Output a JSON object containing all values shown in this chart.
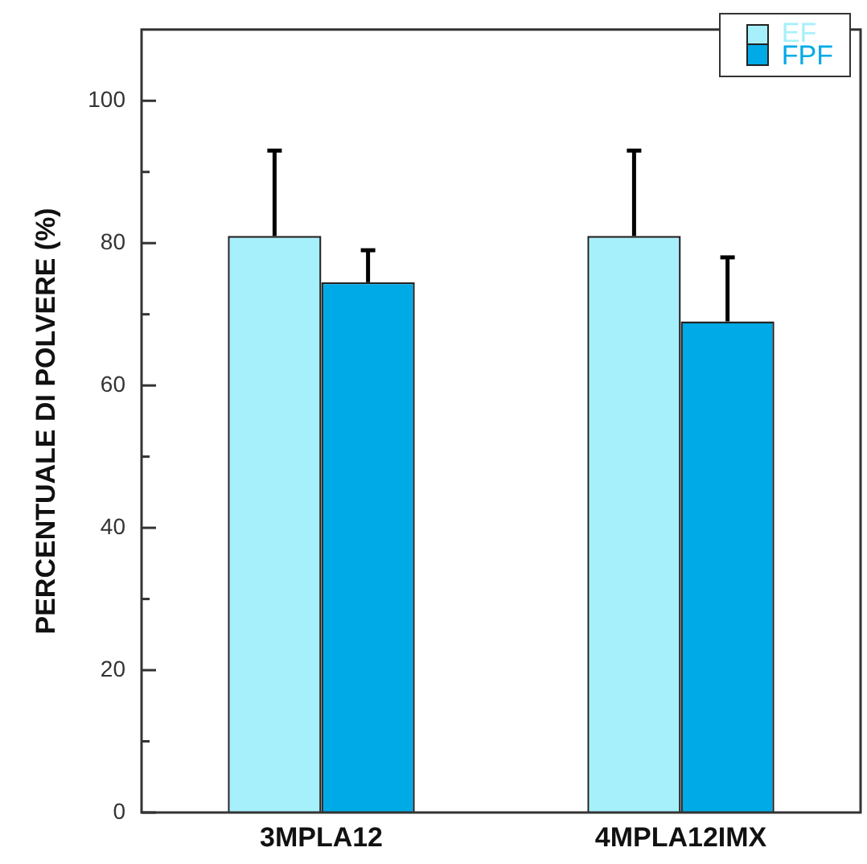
{
  "chart_data": {
    "type": "bar",
    "ylabel": "PERCENTUALE DI POLVERE (%)",
    "categories": [
      "3MPLA12",
      "4MPLA12IMX"
    ],
    "series": [
      {
        "name": "EF",
        "color": "#a6f0fb",
        "values": [
          81,
          81
        ],
        "errors": [
          [
            81,
            93
          ],
          [
            81,
            93
          ]
        ]
      },
      {
        "name": "FPF",
        "color": "#00aae6",
        "values": [
          74.5,
          69
        ],
        "errors": [
          [
            74.5,
            79
          ],
          [
            69,
            78
          ]
        ]
      }
    ],
    "ylim": [
      0,
      110
    ],
    "yticks": [
      0,
      {
        "value": 10,
        "label": null
      },
      20,
      {
        "value": 30,
        "label": null
      },
      40,
      {
        "value": 50,
        "label": null
      },
      60,
      {
        "value": 70,
        "label": null
      },
      80,
      {
        "value": 90,
        "label": null
      },
      100
    ],
    "legend": "top right"
  }
}
